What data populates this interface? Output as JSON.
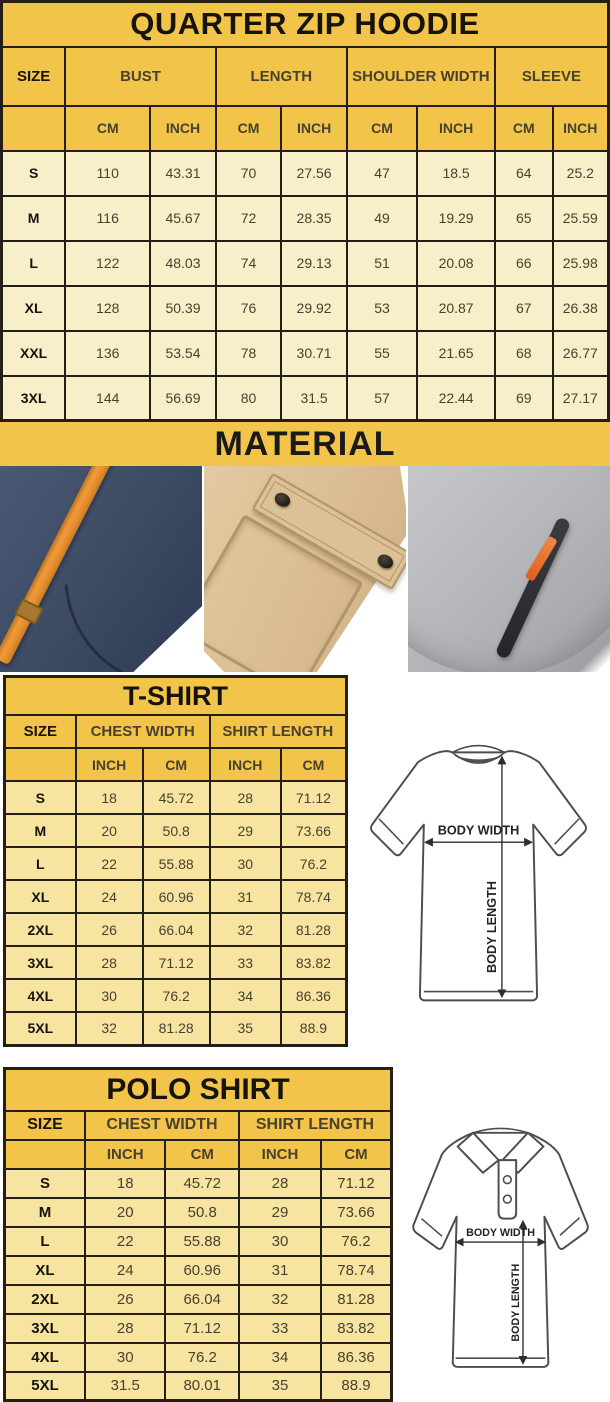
{
  "hoodie": {
    "title": "QUARTER ZIP HOODIE",
    "size_label": "SIZE",
    "group_labels": [
      "BUST",
      "LENGTH",
      "SHOULDER WIDTH",
      "SLEEVE"
    ],
    "cm": "CM",
    "inch": "INCH",
    "rows": [
      [
        "S",
        "110",
        "43.31",
        "70",
        "27.56",
        "47",
        "18.5",
        "64",
        "25.2"
      ],
      [
        "M",
        "116",
        "45.67",
        "72",
        "28.35",
        "49",
        "19.29",
        "65",
        "25.59"
      ],
      [
        "L",
        "122",
        "48.03",
        "74",
        "29.13",
        "51",
        "20.08",
        "66",
        "25.98"
      ],
      [
        "XL",
        "128",
        "50.39",
        "76",
        "29.92",
        "53",
        "20.87",
        "67",
        "26.38"
      ],
      [
        "XXL",
        "136",
        "53.54",
        "78",
        "30.71",
        "55",
        "21.65",
        "68",
        "26.77"
      ],
      [
        "3XL",
        "144",
        "56.69",
        "80",
        "31.5",
        "57",
        "22.44",
        "69",
        "27.17"
      ]
    ]
  },
  "material": {
    "title": "MATERIAL",
    "photos": [
      "navy-fleece-with-orange-drawstring",
      "khaki-fabric-snap-pocket",
      "gray-fleece-with-zipper-pocket"
    ]
  },
  "tshirt": {
    "title": "T-SHIRT",
    "size_label": "SIZE",
    "group_labels": [
      "CHEST WIDTH",
      "SHIRT LENGTH"
    ],
    "inch": "INCH",
    "cm": "CM",
    "rows": [
      [
        "S",
        "18",
        "45.72",
        "28",
        "71.12"
      ],
      [
        "M",
        "20",
        "50.8",
        "29",
        "73.66"
      ],
      [
        "L",
        "22",
        "55.88",
        "30",
        "76.2"
      ],
      [
        "XL",
        "24",
        "60.96",
        "31",
        "78.74"
      ],
      [
        "2XL",
        "26",
        "66.04",
        "32",
        "81.28"
      ],
      [
        "3XL",
        "28",
        "71.12",
        "33",
        "83.82"
      ],
      [
        "4XL",
        "30",
        "76.2",
        "34",
        "86.36"
      ],
      [
        "5XL",
        "32",
        "81.28",
        "35",
        "88.9"
      ]
    ]
  },
  "polo": {
    "title": "POLO SHIRT",
    "size_label": "SIZE",
    "group_labels": [
      "CHEST WIDTH",
      "SHIRT LENGTH"
    ],
    "inch": "INCH",
    "cm": "CM",
    "rows": [
      [
        "S",
        "18",
        "45.72",
        "28",
        "71.12"
      ],
      [
        "M",
        "20",
        "50.8",
        "29",
        "73.66"
      ],
      [
        "L",
        "22",
        "55.88",
        "30",
        "76.2"
      ],
      [
        "XL",
        "24",
        "60.96",
        "31",
        "78.74"
      ],
      [
        "2XL",
        "26",
        "66.04",
        "32",
        "81.28"
      ],
      [
        "3XL",
        "28",
        "71.12",
        "33",
        "83.82"
      ],
      [
        "4XL",
        "30",
        "76.2",
        "34",
        "86.36"
      ],
      [
        "5XL",
        "31.5",
        "80.01",
        "35",
        "88.9"
      ]
    ]
  },
  "diagram": {
    "body_width": "BODY WIDTH",
    "body_length": "BODY LENGTH"
  },
  "colors": {
    "header_gold": "#f2c54a",
    "hoodie_row_cream": "#f7efca",
    "shirt_row_yellow": "#f6e4a0",
    "table_border": "#241f15",
    "navy_fabric": "#3e4c66",
    "orange_drawstring": "#f09a3c",
    "khaki_fabric": "#d9bc92",
    "gray_fabric": "#b7b8bc",
    "zipper_black": "#26262a",
    "zipper_pull_orange": "#dd5f22"
  }
}
